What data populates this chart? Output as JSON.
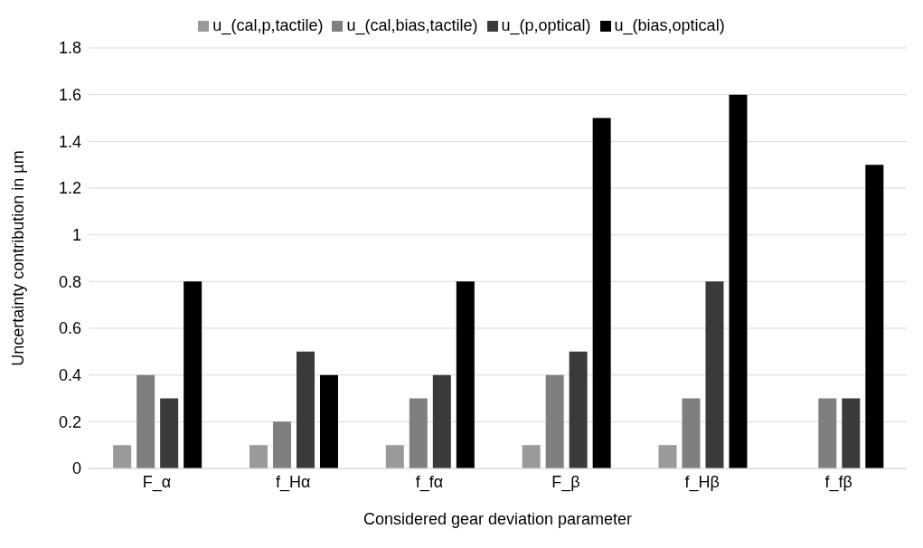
{
  "chart_data": {
    "type": "bar",
    "xlabel": "Considered gear deviation parameter",
    "ylabel": "Uncertainty contribution in µm",
    "categories": [
      "F_α",
      "f_Hα",
      "f_fα",
      "F_β",
      "f_Hβ",
      "f_fβ"
    ],
    "series": [
      {
        "name": "u_(cal,p,tactile)",
        "color": "#9a9a9a",
        "values": [
          0.1,
          0.1,
          0.1,
          0.1,
          0.1,
          null
        ]
      },
      {
        "name": "u_(cal,bias,tactile)",
        "color": "#7f7f7f",
        "values": [
          0.4,
          0.2,
          0.3,
          0.4,
          0.3,
          0.3
        ]
      },
      {
        "name": "u_(p,optical)",
        "color": "#3a3a3a",
        "values": [
          0.3,
          0.5,
          0.4,
          0.5,
          0.8,
          0.3
        ]
      },
      {
        "name": "u_(bias,optical)",
        "color": "#000000",
        "values": [
          0.8,
          0.4,
          0.8,
          1.5,
          1.6,
          1.3
        ]
      }
    ],
    "ylim": [
      0,
      1.8
    ],
    "yticks": [
      0,
      0.2,
      0.4,
      0.6,
      0.8,
      1,
      1.2,
      1.4,
      1.6,
      1.8
    ],
    "grid": "y",
    "legend": "top"
  }
}
